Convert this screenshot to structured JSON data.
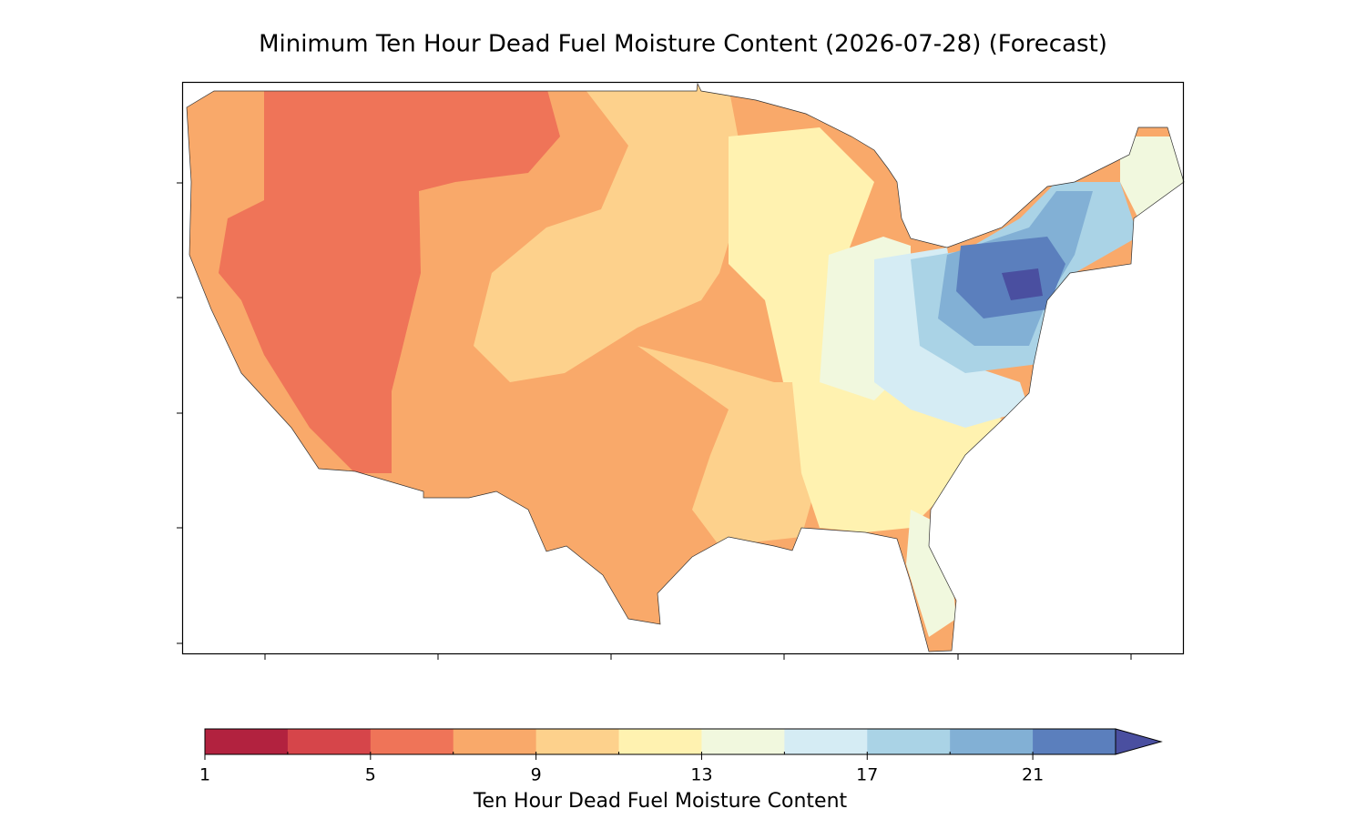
{
  "chart_data": {
    "type": "colorbar",
    "title": "Minimum Ten Hour Dead Fuel Moisture Content (2026-07-28) (Forecast)",
    "colorbar": {
      "label": "Ten Hour Dead Fuel Moisture Content",
      "bounds": [
        1,
        3,
        5,
        7,
        9,
        11,
        13,
        15,
        17,
        19,
        21,
        23
      ],
      "colors": [
        "#b2223f",
        "#d6454a",
        "#ef7458",
        "#f9a96a",
        "#fdd18c",
        "#fff2b0",
        "#f1f8de",
        "#d5ecf4",
        "#aad3e6",
        "#82b0d5",
        "#5b7fbd"
      ],
      "extend_color": "#4a4fa0",
      "ticks": [
        1,
        5,
        9,
        13,
        17,
        21
      ]
    }
  }
}
